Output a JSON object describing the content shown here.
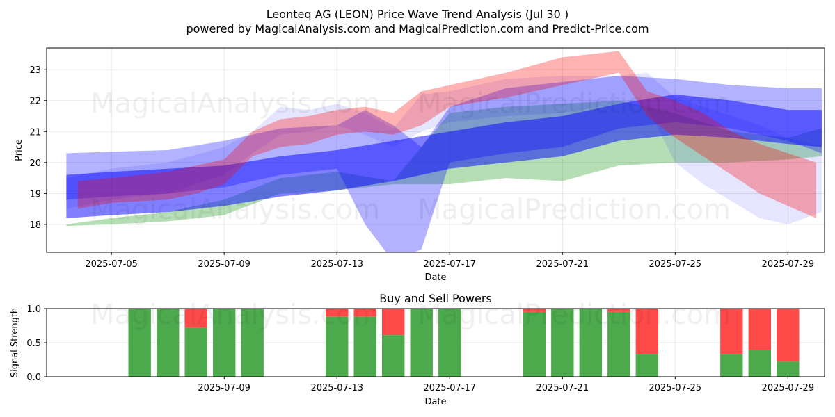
{
  "chart_data": [
    {
      "type": "area",
      "title_line1": "Leonteq AG (LEON) Price Wave Trend Analysis (Jul 30 )",
      "title_line2": "powered by MagicalAnalysis.com and MagicalPrediction.com and Predict-Price.com",
      "xlabel": "Date",
      "ylabel": "Price",
      "xlim": [
        -0.3,
        27.3
      ],
      "ylim": [
        17.1,
        23.7
      ],
      "x_ticks": [
        {
          "x": 2,
          "label": "2025-07-05"
        },
        {
          "x": 6,
          "label": "2025-07-09"
        },
        {
          "x": 10,
          "label": "2025-07-13"
        },
        {
          "x": 14,
          "label": "2025-07-17"
        },
        {
          "x": 18,
          "label": "2025-07-21"
        },
        {
          "x": 22,
          "label": "2025-07-25"
        },
        {
          "x": 26,
          "label": "2025-07-29"
        }
      ],
      "y_ticks": [
        18,
        19,
        20,
        21,
        22,
        23
      ],
      "series": [
        {
          "name": "green band",
          "color": "#2ca02c",
          "opacity": 0.35,
          "x": [
            0.4,
            2,
            4,
            6,
            8,
            10,
            12,
            14,
            16,
            18,
            20,
            22,
            24,
            26,
            27.2
          ],
          "upper": [
            18.0,
            18.2,
            18.4,
            18.8,
            19.5,
            19.7,
            19.4,
            21.6,
            21.8,
            21.9,
            22.0,
            21.6,
            21.0,
            20.8,
            21.1
          ],
          "lower": [
            17.95,
            18.0,
            18.1,
            18.3,
            19.0,
            19.1,
            19.3,
            19.3,
            19.5,
            19.4,
            19.9,
            20.0,
            20.0,
            20.1,
            20.2
          ]
        },
        {
          "name": "light blue band",
          "color": "#0000ff",
          "opacity": 0.1,
          "x": [
            0.4,
            2,
            4,
            6,
            7,
            8,
            9,
            10,
            11,
            12,
            13,
            14,
            16,
            18,
            20,
            21,
            22,
            23,
            25,
            26,
            27.2
          ],
          "upper": [
            19.5,
            19.8,
            20.0,
            20.5,
            21.0,
            21.8,
            21.7,
            21.9,
            21.6,
            21.1,
            22.2,
            22.3,
            22.7,
            22.8,
            22.8,
            22.9,
            22.1,
            21.8,
            21.2,
            20.8,
            20.5
          ],
          "lower": [
            18.5,
            18.8,
            19.0,
            19.6,
            20.3,
            20.9,
            21.0,
            21.2,
            20.9,
            20.5,
            21.0,
            21.3,
            21.5,
            21.6,
            21.9,
            21.8,
            20.0,
            19.3,
            18.2,
            18.0,
            18.4
          ]
        },
        {
          "name": "blue band",
          "color": "#0000ff",
          "opacity": 0.3,
          "x": [
            0.4,
            2,
            4,
            6,
            8,
            10,
            11,
            12,
            13,
            14,
            16,
            18,
            20,
            22,
            24,
            26,
            27.2
          ],
          "upper": [
            20.3,
            20.35,
            20.4,
            20.7,
            21.1,
            21.2,
            21.7,
            21.2,
            20.5,
            21.8,
            22.4,
            22.6,
            22.8,
            22.7,
            22.5,
            22.4,
            22.4
          ],
          "lower": [
            18.8,
            18.9,
            19.0,
            19.2,
            19.6,
            19.8,
            18.0,
            16.8,
            17.2,
            20.0,
            20.3,
            20.5,
            21.1,
            21.3,
            21.1,
            20.7,
            20.3
          ]
        },
        {
          "name": "blue trend",
          "color": "#0000ff",
          "opacity": 0.5,
          "x": [
            0.4,
            2,
            4,
            6,
            8,
            10,
            12,
            14,
            16,
            18,
            20,
            22,
            24,
            26,
            27.2
          ],
          "upper": [
            19.6,
            19.7,
            19.8,
            19.9,
            20.2,
            20.4,
            20.7,
            21.0,
            21.3,
            21.5,
            21.9,
            22.2,
            22.0,
            21.7,
            21.7
          ],
          "lower": [
            18.2,
            18.3,
            18.4,
            18.6,
            18.9,
            19.1,
            19.4,
            19.8,
            20.0,
            20.2,
            20.7,
            20.9,
            20.8,
            20.6,
            20.5
          ]
        },
        {
          "name": "red wave",
          "color": "#ff0000",
          "opacity": 0.3,
          "x": [
            0.8,
            2,
            4,
            5,
            6,
            7,
            8,
            9,
            10,
            11,
            12,
            13,
            14,
            16,
            18,
            20,
            21,
            22,
            23,
            24,
            25,
            26,
            27
          ],
          "upper": [
            19.4,
            19.5,
            19.7,
            19.9,
            20.1,
            21.0,
            21.4,
            21.5,
            21.7,
            21.8,
            21.6,
            22.3,
            22.5,
            22.9,
            23.4,
            23.6,
            22.3,
            22.0,
            21.6,
            21.0,
            20.6,
            20.3,
            20.0
          ],
          "lower": [
            18.5,
            18.7,
            18.8,
            19.0,
            19.3,
            20.2,
            20.5,
            20.6,
            20.9,
            21.0,
            20.9,
            21.2,
            21.8,
            22.1,
            22.5,
            22.9,
            21.5,
            20.8,
            20.2,
            19.6,
            19.0,
            18.6,
            18.2
          ]
        }
      ]
    },
    {
      "type": "bar",
      "title": "Buy and Sell Powers",
      "xlabel": "Date",
      "ylabel": "Signal Strength",
      "xlim": [
        -0.3,
        27.3
      ],
      "ylim": [
        0,
        1.0
      ],
      "y_ticks": [
        "0.0",
        "0.5",
        "1.0"
      ],
      "x_ticks": [
        {
          "x": 6,
          "label": "2025-07-09"
        },
        {
          "x": 10,
          "label": "2025-07-13"
        },
        {
          "x": 14,
          "label": "2025-07-17"
        },
        {
          "x": 18,
          "label": "2025-07-21"
        },
        {
          "x": 22,
          "label": "2025-07-25"
        },
        {
          "x": 26,
          "label": "2025-07-29"
        }
      ],
      "buy_color": "#4caa4c",
      "sell_color": "#ff4a4a",
      "bars": [
        {
          "x": 3,
          "buy": 1.0
        },
        {
          "x": 4,
          "buy": 1.0
        },
        {
          "x": 5,
          "buy": 0.72
        },
        {
          "x": 6,
          "buy": 1.0
        },
        {
          "x": 7,
          "buy": 1.0
        },
        {
          "x": 10,
          "buy": 0.88
        },
        {
          "x": 11,
          "buy": 0.88
        },
        {
          "x": 12,
          "buy": 0.61
        },
        {
          "x": 13,
          "buy": 1.0
        },
        {
          "x": 14,
          "buy": 1.0
        },
        {
          "x": 17,
          "buy": 0.95
        },
        {
          "x": 18,
          "buy": 1.0
        },
        {
          "x": 19,
          "buy": 1.0
        },
        {
          "x": 20,
          "buy": 0.95
        },
        {
          "x": 21,
          "buy": 0.33
        },
        {
          "x": 24,
          "buy": 0.33
        },
        {
          "x": 25,
          "buy": 0.39
        },
        {
          "x": 26,
          "buy": 0.22
        }
      ]
    }
  ],
  "watermarks": [
    "MagicalAnalysis.com",
    "MagicalPrediction.com"
  ]
}
